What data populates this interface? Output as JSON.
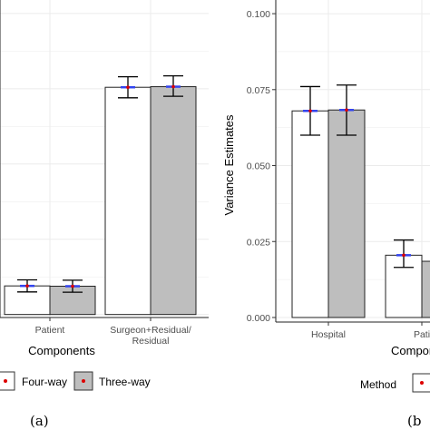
{
  "chart_data": [
    {
      "type": "bar",
      "panel_caption": "(a)",
      "xlabel": "Components",
      "ylabel": "",
      "categories": [
        "Patient",
        "Surgeon+Residual/\nResidual"
      ],
      "series": [
        {
          "name": "Four-way",
          "values": [
            0.0095,
            0.0755
          ],
          "ci_low": [
            0.0075,
            0.072
          ],
          "ci_high": [
            0.0115,
            0.079
          ]
        },
        {
          "name": "Three-way",
          "values": [
            0.0094,
            0.0757
          ],
          "ci_low": [
            0.0074,
            0.0725
          ],
          "ci_high": [
            0.0114,
            0.0793
          ]
        }
      ],
      "ylim": [
        -0.001,
        0.1045
      ],
      "grid": true,
      "legend_title": "",
      "legend_position": "bottom",
      "colors": {
        "Four-way": "#ffffff",
        "Three-way": "#bebebe"
      }
    },
    {
      "type": "bar",
      "panel_caption": "(b",
      "xlabel": "Compon",
      "ylabel": "Variance Estimates",
      "categories": [
        "Hospital",
        "Pati"
      ],
      "series": [
        {
          "name": "Four-way",
          "values": [
            0.068,
            0.0205
          ],
          "ci_low": [
            0.06,
            0.0165
          ],
          "ci_high": [
            0.076,
            0.0255
          ]
        },
        {
          "name": "Three-way",
          "values": [
            0.0683,
            0.0185
          ],
          "ci_low": [
            0.06,
            0.015
          ],
          "ci_high": [
            0.0765,
            0.0225
          ]
        }
      ],
      "yticks": [
        "0.000",
        "0.025",
        "0.050",
        "0.075",
        "0.100"
      ],
      "ytick_values": [
        0,
        0.025,
        0.05,
        0.075,
        0.1
      ],
      "ylim": [
        -0.0015,
        0.1045
      ],
      "grid": true,
      "legend_title": "Method",
      "legend_position": "bottom",
      "colors": {
        "Four-way": "#ffffff",
        "Three-way": "#bebebe"
      }
    }
  ]
}
